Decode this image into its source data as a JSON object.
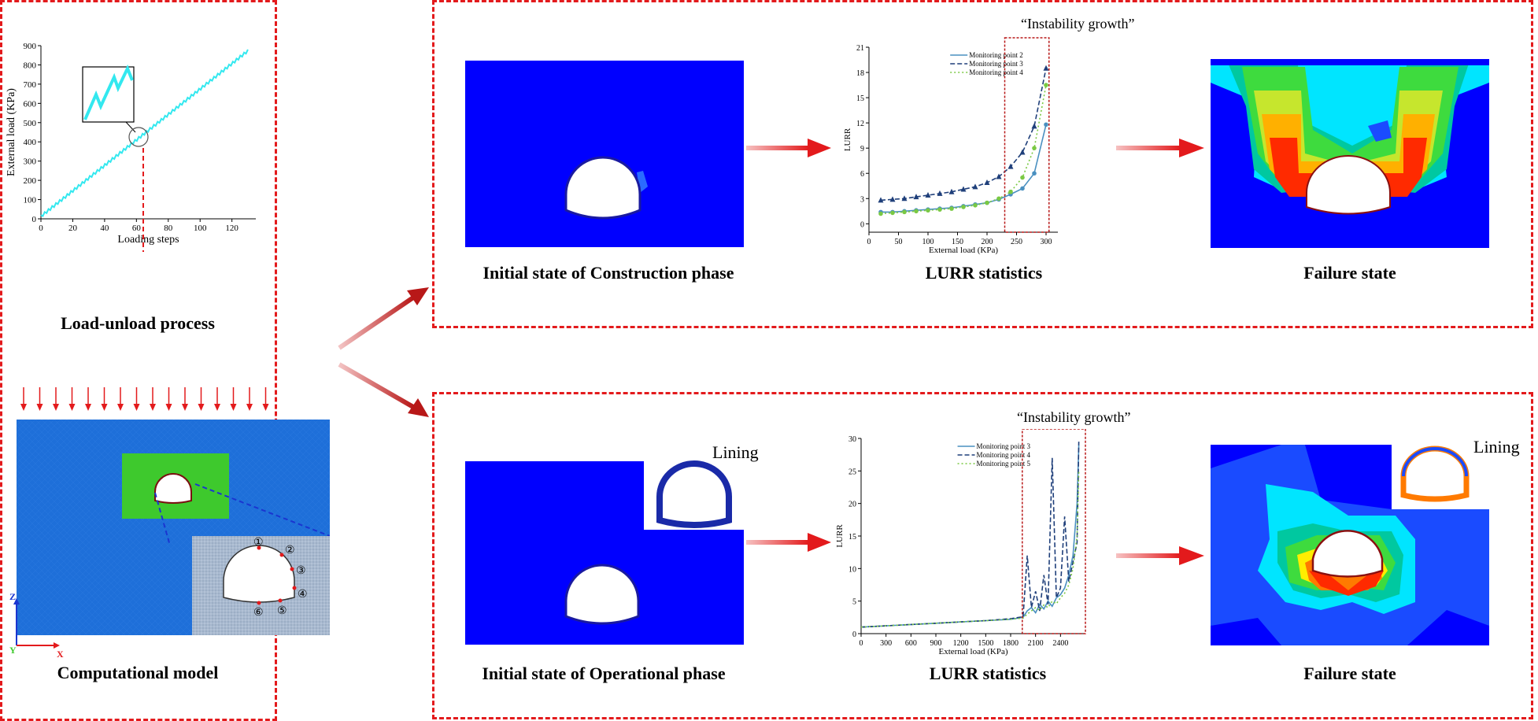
{
  "left_panel": {
    "load_chart_caption": "Load-unload process",
    "model_caption": "Computational model",
    "axes_labels": {
      "z": "Z",
      "y": "Y",
      "x": "X"
    },
    "monitor_markers": [
      "①",
      "②",
      "③",
      "④",
      "⑤",
      "⑥"
    ]
  },
  "top_row": {
    "initial_caption": "Initial state of Construction phase",
    "lurr_caption": "LURR statistics",
    "failure_caption": "Failure state",
    "instability_label": "“Instability growth”"
  },
  "bottom_row": {
    "initial_caption": "Initial state of Operational phase",
    "lurr_caption": "LURR statistics",
    "failure_caption": "Failure state",
    "instability_label": "“Instability growth”",
    "lining_label_initial": "Lining",
    "lining_label_failure": "Lining"
  },
  "colors": {
    "dashed_red": "#e31a1c",
    "model_blue": "#0000ff",
    "mesh_blue": "#1e6fd9",
    "load_line": "#33e8ef",
    "series_solid": "#4a90c0",
    "series_dashed": "#1f3f7a",
    "series_dotted": "#7ac943"
  },
  "chart_data": [
    {
      "id": "load_unload",
      "type": "line",
      "title": "",
      "xlabel": "Loading steps",
      "ylabel": "External load (KPa)",
      "xlim": [
        0,
        135
      ],
      "ylim": [
        0,
        900
      ],
      "xticks": [
        0,
        20,
        40,
        60,
        80,
        100,
        120
      ],
      "yticks": [
        0,
        100,
        200,
        300,
        400,
        500,
        600,
        700,
        800,
        900
      ],
      "series": [
        {
          "x": [
            0,
            130
          ],
          "values": [
            20,
            880
          ]
        }
      ]
    },
    {
      "id": "lurr_construction",
      "type": "line",
      "xlabel": "External load (KPa)",
      "ylabel": "LURR",
      "xlim": [
        0,
        320
      ],
      "ylim": [
        -1,
        21
      ],
      "xticks": [
        0,
        50,
        100,
        150,
        200,
        250,
        300
      ],
      "yticks": [
        0,
        3,
        6,
        9,
        12,
        15,
        18,
        21
      ],
      "x": [
        20,
        40,
        60,
        80,
        100,
        120,
        140,
        160,
        180,
        200,
        220,
        240,
        260,
        280,
        300
      ],
      "series": [
        {
          "name": "Monitoring point 2",
          "values": [
            1.4,
            1.4,
            1.5,
            1.6,
            1.7,
            1.8,
            1.9,
            2.1,
            2.3,
            2.5,
            2.9,
            3.5,
            4.2,
            6.0,
            11.8
          ]
        },
        {
          "name": "Monitoring point 3",
          "values": [
            2.8,
            2.9,
            3.0,
            3.2,
            3.4,
            3.6,
            3.8,
            4.1,
            4.4,
            4.9,
            5.6,
            6.8,
            8.5,
            11.6,
            18.5
          ]
        },
        {
          "name": "Monitoring point 4",
          "values": [
            1.2,
            1.3,
            1.4,
            1.5,
            1.6,
            1.7,
            1.8,
            2.0,
            2.2,
            2.5,
            3.0,
            3.8,
            5.5,
            9.0,
            16.5
          ]
        }
      ]
    },
    {
      "id": "lurr_operational",
      "type": "line",
      "xlabel": "External load (KPa)",
      "ylabel": "LURR",
      "xlim": [
        0,
        2700
      ],
      "ylim": [
        0,
        30
      ],
      "xticks": [
        0,
        300,
        600,
        900,
        1200,
        1500,
        1800,
        2100,
        2400
      ],
      "yticks": [
        0,
        5,
        10,
        15,
        20,
        25,
        30
      ],
      "x": [
        0,
        300,
        600,
        900,
        1200,
        1500,
        1800,
        1950,
        2000,
        2050,
        2100,
        2150,
        2200,
        2250,
        2300,
        2350,
        2400,
        2450,
        2500,
        2550,
        2600,
        2620
      ],
      "series": [
        {
          "name": "Monitoring point 3",
          "values": [
            1.0,
            1.2,
            1.4,
            1.6,
            1.8,
            2.0,
            2.2,
            2.5,
            3.5,
            4.0,
            3.2,
            4.5,
            3.8,
            5.0,
            4.2,
            5.5,
            6.0,
            7.0,
            9.0,
            12.0,
            20.0,
            29.0
          ]
        },
        {
          "name": "Monitoring point 4",
          "values": [
            1.0,
            1.2,
            1.4,
            1.6,
            1.8,
            2.0,
            2.3,
            2.6,
            12.0,
            4.0,
            6.5,
            3.5,
            9.0,
            4.5,
            27.0,
            5.5,
            7.0,
            18.0,
            8.0,
            11.0,
            14.0,
            29.5
          ]
        },
        {
          "name": "Monitoring point 5",
          "values": [
            1.0,
            1.2,
            1.4,
            1.6,
            1.8,
            2.0,
            2.2,
            2.4,
            3.0,
            3.5,
            4.0,
            3.6,
            4.4,
            4.0,
            5.0,
            4.6,
            5.5,
            6.2,
            7.5,
            10.0,
            15.0,
            25.0
          ]
        }
      ]
    }
  ]
}
